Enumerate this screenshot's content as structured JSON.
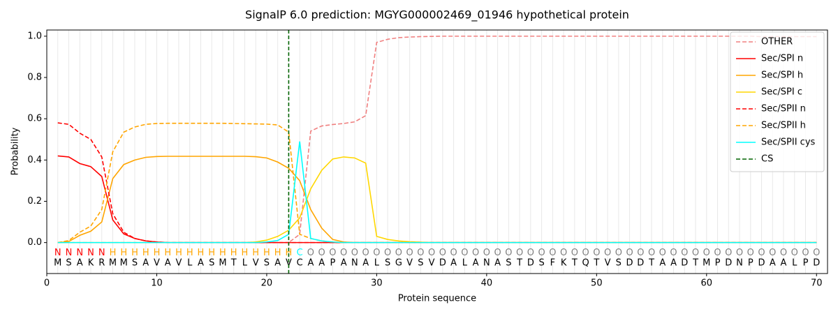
{
  "chart_data": {
    "type": "line",
    "title": "SignalP 6.0 prediction: MGYG000002469_01946 hypothetical protein",
    "x_label": "Protein sequence",
    "y_label": "Probability",
    "xlim": [
      0,
      71
    ],
    "ylim": [
      -0.15,
      1.03
    ],
    "xticks": [
      0,
      10,
      20,
      30,
      40,
      50,
      60,
      70
    ],
    "yticks": [
      {
        "value": 0,
        "label": "0.0"
      },
      {
        "value": 0.2,
        "label": "0.2"
      },
      {
        "value": 0.4,
        "label": "0.4"
      },
      {
        "value": 0.6,
        "label": "0.6"
      },
      {
        "value": 0.8,
        "label": "0.8"
      },
      {
        "value": 1,
        "label": "1.0"
      }
    ],
    "grid": "x",
    "legend": "upper right",
    "x": [
      1,
      2,
      3,
      4,
      5,
      6,
      7,
      8,
      9,
      10,
      11,
      12,
      13,
      14,
      15,
      16,
      17,
      18,
      19,
      20,
      21,
      22,
      23,
      24,
      25,
      26,
      27,
      28,
      29,
      30,
      31,
      32,
      33,
      34,
      35,
      36,
      37,
      38,
      39,
      40,
      41,
      42,
      43,
      44,
      45,
      46,
      47,
      48,
      49,
      50,
      51,
      52,
      53,
      54,
      55,
      56,
      57,
      58,
      59,
      60,
      61,
      62,
      63,
      64,
      65,
      66,
      67,
      68,
      69,
      70
    ],
    "series": [
      {
        "name": "OTHER",
        "color": "#f08080",
        "dash": true,
        "values": [
          0,
          0,
          0,
          0,
          0,
          0,
          0,
          0,
          0,
          0,
          0,
          0,
          0,
          0,
          0,
          0,
          0,
          0,
          0,
          0,
          0,
          0,
          0.04,
          0.54,
          0.565,
          0.572,
          0.577,
          0.585,
          0.615,
          0.97,
          0.985,
          0.993,
          0.996,
          0.998,
          0.999,
          1,
          1,
          1,
          1,
          1,
          1,
          1,
          1,
          1,
          1,
          1,
          1,
          1,
          1,
          1,
          1,
          1,
          1,
          1,
          1,
          1,
          1,
          1,
          1,
          1,
          1,
          1,
          1,
          1,
          0.998,
          0.998,
          0.998,
          0.998,
          0.998,
          0.998
        ]
      },
      {
        "name": "Sec/SPI n",
        "color": "#ff0000",
        "dash": false,
        "values": [
          0.42,
          0.415,
          0.383,
          0.368,
          0.32,
          0.11,
          0.042,
          0.02,
          0.008,
          0.003,
          0,
          0,
          0,
          0,
          0,
          0,
          0,
          0,
          0,
          0,
          0,
          0,
          0,
          0,
          0,
          0,
          0,
          0,
          0,
          0,
          0,
          0,
          0,
          0,
          0,
          0,
          0,
          0,
          0,
          0,
          0,
          0,
          0,
          0,
          0,
          0,
          0,
          0,
          0,
          0,
          0,
          0,
          0,
          0,
          0,
          0,
          0,
          0,
          0,
          0,
          0,
          0,
          0,
          0,
          0,
          0,
          0,
          0,
          0,
          0
        ]
      },
      {
        "name": "Sec/SPI h",
        "color": "#ffa500",
        "dash": false,
        "values": [
          0,
          0.005,
          0.035,
          0.055,
          0.1,
          0.31,
          0.378,
          0.4,
          0.413,
          0.417,
          0.418,
          0.418,
          0.418,
          0.418,
          0.418,
          0.418,
          0.418,
          0.418,
          0.416,
          0.41,
          0.39,
          0.36,
          0.3,
          0.16,
          0.07,
          0.015,
          0.003,
          0,
          0,
          0,
          0,
          0,
          0,
          0,
          0,
          0,
          0,
          0,
          0,
          0,
          0,
          0,
          0,
          0,
          0,
          0,
          0,
          0,
          0,
          0,
          0,
          0,
          0,
          0,
          0,
          0,
          0,
          0,
          0,
          0,
          0,
          0,
          0,
          0,
          0,
          0,
          0,
          0,
          0,
          0
        ]
      },
      {
        "name": "Sec/SPI c",
        "color": "#ffd700",
        "dash": false,
        "values": [
          0,
          0,
          0,
          0,
          0,
          0,
          0,
          0,
          0,
          0,
          0,
          0,
          0,
          0,
          0,
          0,
          0,
          0,
          0.003,
          0.012,
          0.03,
          0.06,
          0.12,
          0.26,
          0.35,
          0.405,
          0.415,
          0.41,
          0.385,
          0.03,
          0.015,
          0.008,
          0.004,
          0.002,
          0,
          0,
          0,
          0,
          0,
          0,
          0,
          0,
          0,
          0,
          0,
          0,
          0,
          0,
          0,
          0,
          0,
          0,
          0,
          0,
          0,
          0,
          0,
          0,
          0,
          0,
          0,
          0,
          0,
          0,
          0,
          0,
          0,
          0,
          0,
          0
        ]
      },
      {
        "name": "Sec/SPII n",
        "color": "#ff0000",
        "dash": true,
        "values": [
          0.58,
          0.573,
          0.53,
          0.5,
          0.415,
          0.14,
          0.05,
          0.02,
          0.008,
          0.003,
          0,
          0,
          0,
          0,
          0,
          0,
          0,
          0,
          0,
          0,
          0,
          0,
          0,
          0,
          0,
          0,
          0,
          0,
          0,
          0,
          0,
          0,
          0,
          0,
          0,
          0,
          0,
          0,
          0,
          0,
          0,
          0,
          0,
          0,
          0,
          0,
          0,
          0,
          0,
          0,
          0,
          0,
          0,
          0,
          0,
          0,
          0,
          0,
          0,
          0,
          0,
          0,
          0,
          0,
          0,
          0,
          0,
          0,
          0,
          0
        ]
      },
      {
        "name": "Sec/SPII h",
        "color": "#ffa500",
        "dash": true,
        "values": [
          0,
          0.01,
          0.05,
          0.08,
          0.16,
          0.44,
          0.535,
          0.56,
          0.573,
          0.577,
          0.578,
          0.578,
          0.578,
          0.578,
          0.578,
          0.578,
          0.577,
          0.576,
          0.575,
          0.574,
          0.57,
          0.535,
          0.04,
          0.02,
          0.008,
          0.003,
          0,
          0,
          0,
          0,
          0,
          0,
          0,
          0,
          0,
          0,
          0,
          0,
          0,
          0,
          0,
          0,
          0,
          0,
          0,
          0,
          0,
          0,
          0,
          0,
          0,
          0,
          0,
          0,
          0,
          0,
          0,
          0,
          0,
          0,
          0,
          0,
          0,
          0,
          0,
          0,
          0,
          0,
          0,
          0
        ]
      },
      {
        "name": "Sec/SPII cys",
        "color": "#00ffff",
        "dash": false,
        "values": [
          0,
          0,
          0,
          0,
          0,
          0,
          0,
          0,
          0,
          0,
          0,
          0,
          0,
          0,
          0,
          0,
          0,
          0,
          0,
          0.003,
          0.01,
          0.04,
          0.49,
          0.02,
          0.008,
          0.003,
          0,
          0,
          0,
          0,
          0,
          0,
          0,
          0,
          0,
          0,
          0,
          0,
          0,
          0,
          0,
          0,
          0,
          0,
          0,
          0,
          0,
          0,
          0,
          0,
          0,
          0,
          0,
          0,
          0,
          0,
          0,
          0,
          0,
          0,
          0,
          0,
          0,
          0,
          0,
          0,
          0,
          0,
          0,
          0
        ]
      }
    ],
    "cs": {
      "name": "CS",
      "x": 22,
      "color": "#006400"
    },
    "sequence": [
      "M",
      "S",
      "A",
      "K",
      "R",
      "M",
      "M",
      "S",
      "A",
      "V",
      "A",
      "V",
      "L",
      "A",
      "S",
      "M",
      "T",
      "L",
      "V",
      "S",
      "A",
      "V",
      "C",
      "A",
      "A",
      "P",
      "A",
      "N",
      "A",
      "L",
      "S",
      "G",
      "V",
      "S",
      "V",
      "D",
      "A",
      "L",
      "A",
      "N",
      "A",
      "S",
      "T",
      "D",
      "S",
      "F",
      "K",
      "T",
      "Q",
      "T",
      "V",
      "S",
      "D",
      "D",
      "T",
      "A",
      "A",
      "D",
      "T",
      "M",
      "P",
      "D",
      "N",
      "P",
      "D",
      "A",
      "A",
      "L",
      "P",
      "D"
    ],
    "region_labels": [
      "N",
      "N",
      "N",
      "N",
      "N",
      "H",
      "H",
      "H",
      "H",
      "H",
      "H",
      "H",
      "H",
      "H",
      "H",
      "H",
      "H",
      "H",
      "H",
      "H",
      "H",
      "H",
      "C",
      "O",
      "O",
      "O",
      "O",
      "O",
      "O",
      "O",
      "O",
      "O",
      "O",
      "O",
      "O",
      "O",
      "O",
      "O",
      "O",
      "O",
      "O",
      "O",
      "O",
      "O",
      "O",
      "O",
      "O",
      "O",
      "O",
      "O",
      "O",
      "O",
      "O",
      "O",
      "O",
      "O",
      "O",
      "O",
      "O",
      "O",
      "O",
      "O",
      "O",
      "O",
      "O",
      "O",
      "O",
      "O",
      "O",
      "O"
    ],
    "region_colors": {
      "N": "#ff0000",
      "H": "#ffa500",
      "C": "#00ffff",
      "O": "#808080"
    }
  }
}
